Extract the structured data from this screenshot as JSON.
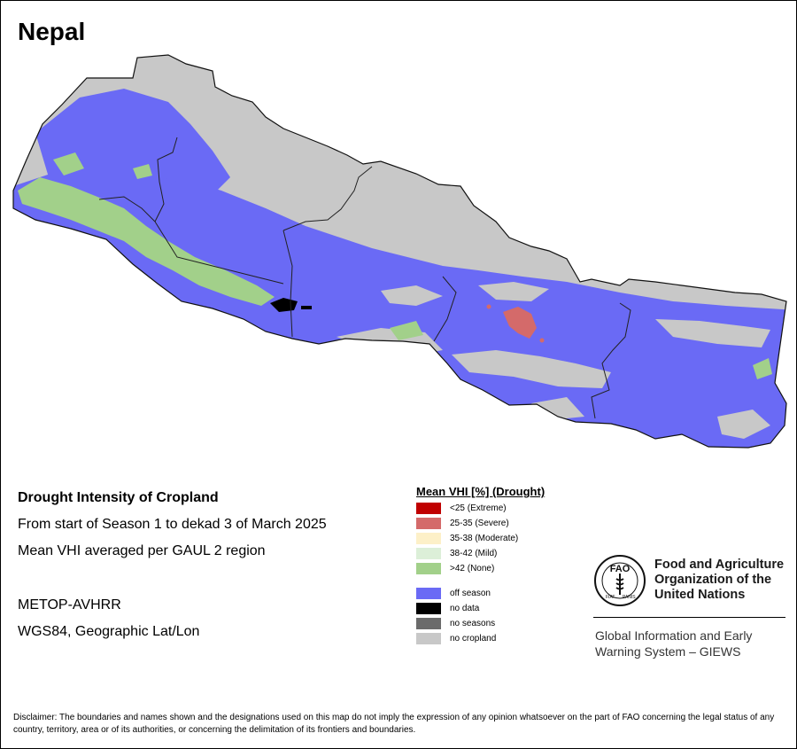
{
  "title": "Nepal",
  "info": {
    "heading": "Drought Intensity of Cropland",
    "period": "From start of Season 1 to dekad 3 of March 2025",
    "method": "Mean VHI averaged per GAUL 2 region",
    "sensor": "METOP-AVHRR",
    "projection": "WGS84, Geographic Lat/Lon"
  },
  "legend": {
    "title": "Mean VHI [%] (Drought)",
    "items": [
      {
        "label": "<25    (Extreme)",
        "color": "#c00000"
      },
      {
        "label": "25-35 (Severe)",
        "color": "#d46a6a"
      },
      {
        "label": "35-38 (Moderate)",
        "color": "#fdf0c8"
      },
      {
        "label": "38-42 (Mild)",
        "color": "#dcefd8"
      },
      {
        "label": ">42    (None)",
        "color": "#a2d08a"
      },
      {
        "label": "off season",
        "color": "#6a6af5"
      },
      {
        "label": "no data",
        "color": "#000000"
      },
      {
        "label": "no seasons",
        "color": "#6b6b6b"
      },
      {
        "label": "no cropland",
        "color": "#c8c8c8"
      }
    ]
  },
  "map_colors": {
    "no_cropland": "#c8c8c8",
    "off_season": "#6a6af5",
    "none": "#a2d08a",
    "severe": "#d46a6a",
    "no_data": "#000000"
  },
  "logo": {
    "text": "FAO",
    "ring_left": "FIAT",
    "ring_right": "PANIS",
    "org_line1": "Food and Agriculture",
    "org_line2": "Organization of the",
    "org_line3": "United Nations",
    "giews_line1": "Global Information and Early",
    "giews_line2": "Warning System – GIEWS"
  },
  "disclaimer": "Disclaimer: The boundaries and names shown and the designations used on this map do not imply the expression of any opinion whatsoever on the part of FAO concerning the legal status of any country, territory, area or of its authorities, or concerning the delimitation of its frontiers and boundaries."
}
